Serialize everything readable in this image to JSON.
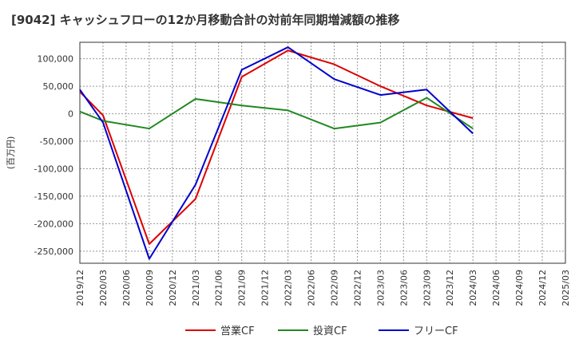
{
  "chart_data": {
    "type": "line",
    "title": "[9042]  キャッシュフローの12か月移動合計の対前年同期増減額の推移",
    "ylabel": "(百万円)",
    "xlabel": "",
    "ylim": [
      -272000,
      130000
    ],
    "yticks": [
      100000,
      50000,
      0,
      -50000,
      -100000,
      -150000,
      -200000,
      -250000
    ],
    "ytick_labels": [
      "100,000",
      "50,000",
      "0",
      "-50,000",
      "-100,000",
      "-150,000",
      "-200,000",
      "-250,000"
    ],
    "x_tick_labels": [
      "2019/12",
      "2020/03",
      "2020/06",
      "2020/09",
      "2020/12",
      "2021/03",
      "2021/06",
      "2021/09",
      "2021/12",
      "2022/03",
      "2022/06",
      "2022/09",
      "2022/12",
      "2023/03",
      "2023/06",
      "2023/09",
      "2023/12",
      "2024/03",
      "2024/06",
      "2024/09",
      "2024/12",
      "2025/03"
    ],
    "grid": true,
    "legend_position": "bottom",
    "series": [
      {
        "name": "営業CF",
        "color": "#dd0000",
        "x": [
          "2019/12",
          "2020/03",
          "2020/09",
          "2021/03",
          "2021/09",
          "2022/03",
          "2022/09",
          "2023/03",
          "2023/09",
          "2024/03"
        ],
        "values": [
          40000,
          -3000,
          -237000,
          -155000,
          67000,
          115000,
          90000,
          50000,
          15000,
          -8000
        ]
      },
      {
        "name": "投資CF",
        "color": "#228822",
        "x": [
          "2019/12",
          "2020/03",
          "2020/09",
          "2021/03",
          "2021/09",
          "2022/03",
          "2022/09",
          "2023/03",
          "2023/09",
          "2024/03"
        ],
        "values": [
          4000,
          -13000,
          -27000,
          27000,
          15000,
          6000,
          -27000,
          -16000,
          29000,
          -27000
        ]
      },
      {
        "name": "フリーCF",
        "color": "#0000cc",
        "x": [
          "2019/12",
          "2020/03",
          "2020/09",
          "2021/03",
          "2021/09",
          "2022/03",
          "2022/09",
          "2023/03",
          "2023/09",
          "2024/03"
        ],
        "values": [
          44000,
          -16000,
          -264000,
          -129000,
          80000,
          121000,
          63000,
          34000,
          44000,
          -36000
        ]
      }
    ]
  }
}
